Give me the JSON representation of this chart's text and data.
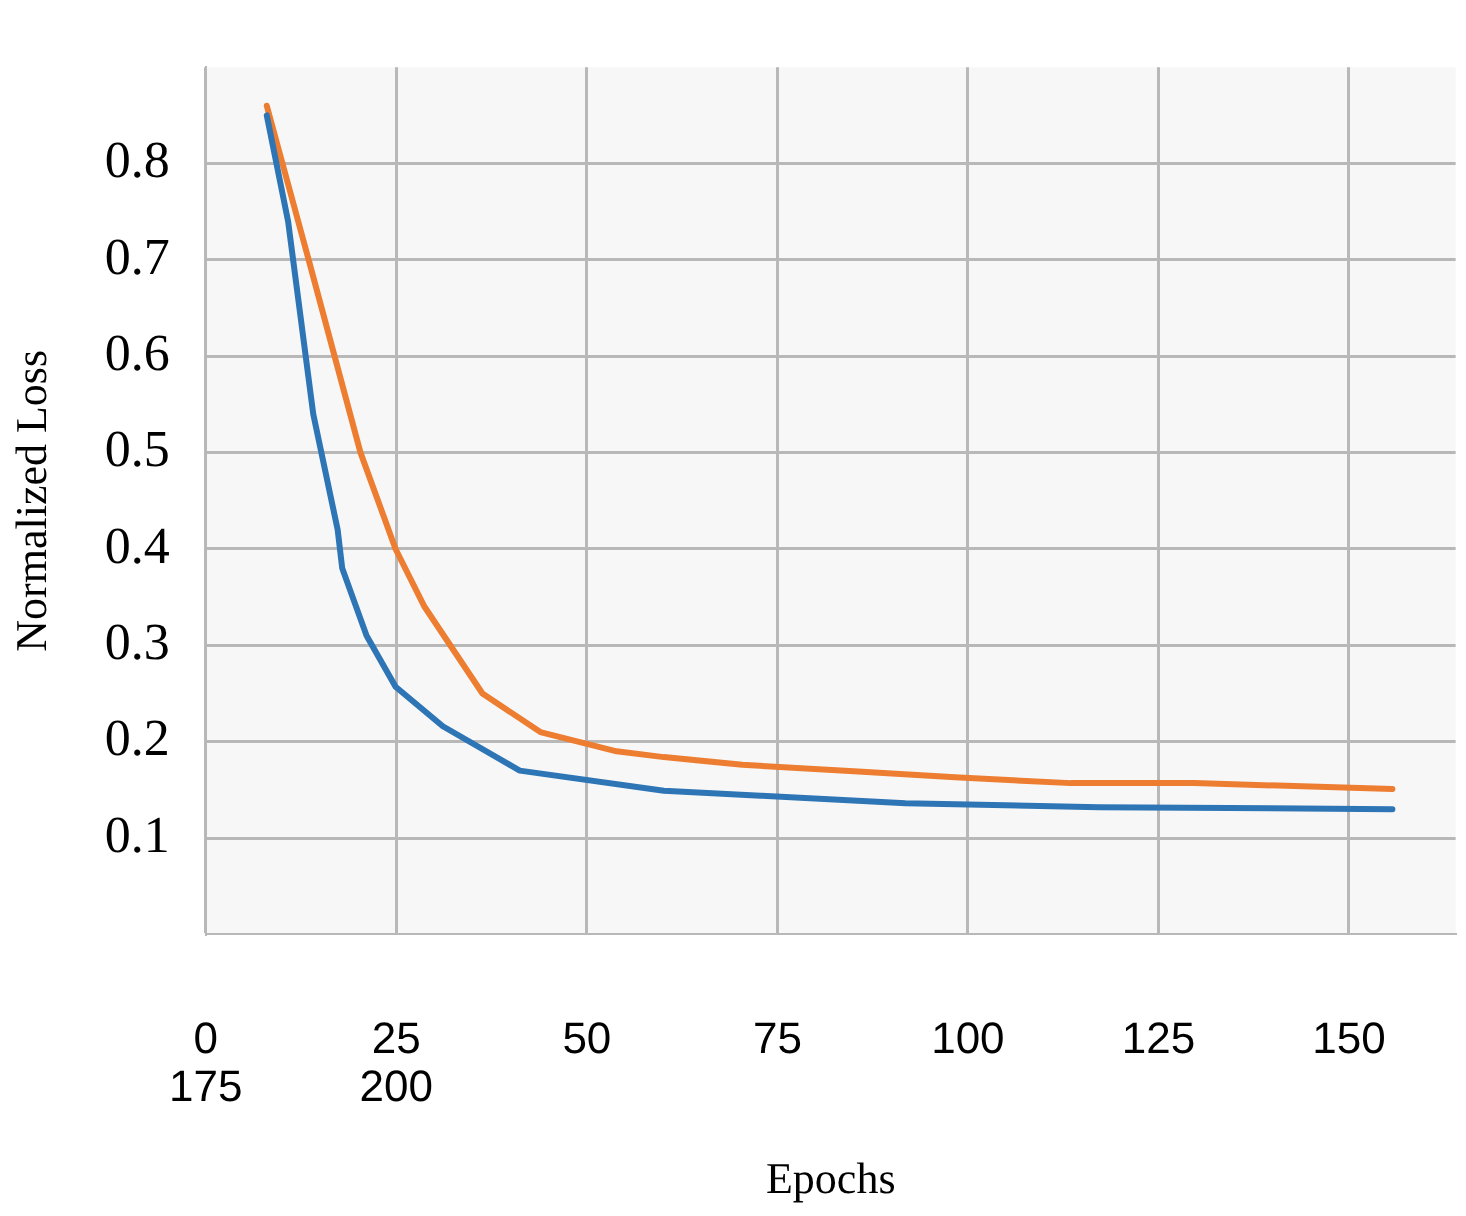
{
  "chart_data": {
    "type": "line",
    "xlabel": "Epochs",
    "ylabel": "Normalized Loss",
    "xlim": [
      0,
      164
    ],
    "ylim": [
      0,
      0.9
    ],
    "xticks": [
      0,
      25,
      50,
      75,
      100,
      125,
      150
    ],
    "annotations": [
      "175",
      "200"
    ],
    "yticks": [
      0.1,
      0.2,
      0.3,
      0.4,
      0.5,
      0.6,
      0.7,
      0.8
    ],
    "grid": true,
    "marker": "none",
    "line_style": "solid",
    "series": [
      {
        "color": "#2e75b6",
        "x": [
          8,
          10.8,
          14.1,
          17.3,
          17.9,
          21.1,
          24.9,
          31.1,
          41.2,
          60.1,
          72.8,
          91.8,
          117.2,
          155.7
        ],
        "values": [
          0.85,
          0.74,
          0.54,
          0.42,
          0.38,
          0.31,
          0.257,
          0.216,
          0.17,
          0.149,
          0.144,
          0.136,
          0.132,
          0.13
        ]
      },
      {
        "color": "#ed7d31",
        "x": [
          8,
          13.5,
          20.3,
          24.9,
          28.7,
          36.3,
          43.9,
          53.9,
          60.1,
          70.4,
          85.6,
          98.3,
          113.5,
          129.7,
          155.7
        ],
        "values": [
          0.86,
          0.7,
          0.5,
          0.4,
          0.34,
          0.25,
          0.21,
          0.19,
          0.184,
          0.176,
          0.169,
          0.163,
          0.157,
          0.157,
          0.151
        ]
      }
    ]
  }
}
